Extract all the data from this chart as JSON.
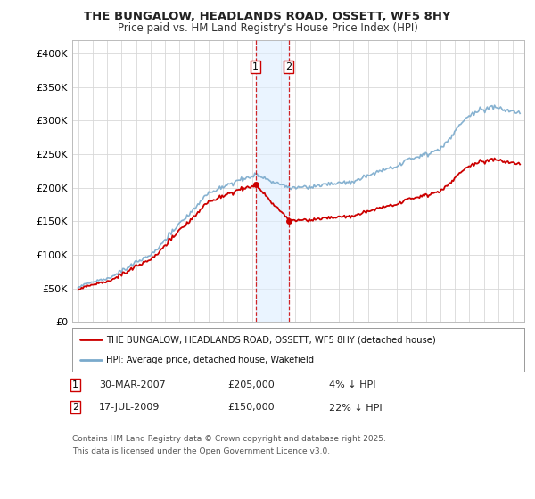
{
  "title_line1": "THE BUNGALOW, HEADLANDS ROAD, OSSETT, WF5 8HY",
  "title_line2": "Price paid vs. HM Land Registry's House Price Index (HPI)",
  "ylim": [
    0,
    420000
  ],
  "yticks": [
    0,
    50000,
    100000,
    150000,
    200000,
    250000,
    300000,
    350000,
    400000
  ],
  "ytick_labels": [
    "£0",
    "£50K",
    "£100K",
    "£150K",
    "£200K",
    "£250K",
    "£300K",
    "£350K",
    "£400K"
  ],
  "background_color": "#ffffff",
  "plot_bg_color": "#ffffff",
  "grid_color": "#d8d8d8",
  "hpi_color": "#7aaacc",
  "price_color": "#cc0000",
  "t1": 2007.25,
  "t2": 2009.54,
  "price1": 205000,
  "price2": 150000,
  "shade_color": "#ddeeff",
  "shade_alpha": 0.6,
  "legend_label_red": "THE BUNGALOW, HEADLANDS ROAD, OSSETT, WF5 8HY (detached house)",
  "legend_label_blue": "HPI: Average price, detached house, Wakefield",
  "footer_text": "Contains HM Land Registry data © Crown copyright and database right 2025.\nThis data is licensed under the Open Government Licence v3.0.",
  "table_row1": [
    "1",
    "30-MAR-2007",
    "£205,000",
    "4% ↓ HPI"
  ],
  "table_row2": [
    "2",
    "17-JUL-2009",
    "£150,000",
    "22% ↓ HPI"
  ],
  "xlim_left": 1994.6,
  "xlim_right": 2025.8
}
